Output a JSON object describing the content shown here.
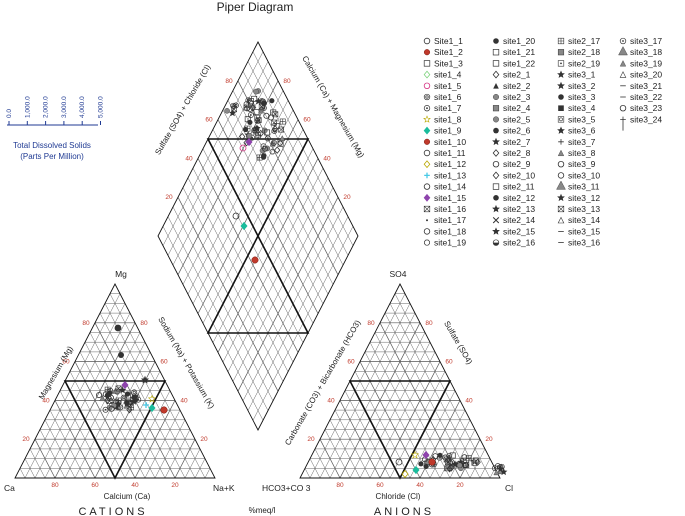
{
  "title": "Piper Diagram",
  "tds_legend": {
    "ticks": [
      "0.0",
      "1,000.0",
      "2,000.0",
      "3,000.0",
      "4,000.0",
      "5,000.0"
    ],
    "title": "Total Dissolved Solids",
    "units": "(Parts Per Million)"
  },
  "cations": {
    "apex_top": "Mg",
    "apex_left": "Ca",
    "apex_right": "Na+K",
    "axis_left": "Magnesium (Mg)",
    "axis_right": "Sodium (Na) + Potassium (K)",
    "axis_bottom": "Calcium (Ca)",
    "caption": "CATIONS"
  },
  "anions": {
    "apex_top": "SO4",
    "apex_left": "HCO3+CO 3",
    "apex_right": "Cl",
    "axis_left": "Carbonate (CO3) + Bicarbonate (HCO3)",
    "axis_right": "Sulfate (SO4)",
    "axis_bottom": "Chloride (Cl)",
    "caption": "ANIONS"
  },
  "diamond": {
    "axis_left": "Sulfate (SO4) + Chloride (Cl)",
    "axis_right": "Calcium (Ca) + Magnesium (Mg)"
  },
  "units_label": "%meq/l",
  "tick_values": [
    "20",
    "40",
    "60",
    "80"
  ],
  "colors": {
    "grid": "#555555",
    "tick": "#c0392b",
    "tds": "#1f3a93",
    "frame": "#111111"
  },
  "legend": {
    "columns": [
      [
        "Site1_1",
        "Site1_2",
        "Site1_3",
        "site1_4",
        "site1_5",
        "site1_6",
        "site1_7",
        "site1_8",
        "site1_9",
        "site1_10",
        "site1_11",
        "site1_12",
        "site1_13",
        "site1_14",
        "site1_15",
        "site1_16",
        "site1_17",
        "site1_18",
        "site1_19"
      ],
      [
        "site1_20",
        "site1_21",
        "site1_22",
        "site2_1",
        "site2_2",
        "site2_3",
        "site2_4",
        "site2_5",
        "site2_6",
        "site2_7",
        "site2_8",
        "site2_9",
        "site2_10",
        "site2_11",
        "site2_12",
        "site2_13",
        "site2_14",
        "site2_15",
        "site2_16"
      ],
      [
        "site2_17",
        "site2_18",
        "site2_19",
        "site3_1",
        "site3_2",
        "site3_3",
        "site3_4",
        "site3_5",
        "site3_6",
        "site3_7",
        "site3_8",
        "site3_9",
        "site3_10",
        "site3_11",
        "site3_12",
        "site3_13",
        "site3_14",
        "site3_15",
        "site3_16"
      ],
      [
        "site3_17",
        "site3_18",
        "site3_19",
        "site3_20",
        "site3_21",
        "site3_22",
        "site3_23",
        "site3_24"
      ]
    ],
    "markers": [
      [
        "circle-open",
        "circle-red",
        "square-open",
        "diamond-green",
        "circle-pink",
        "circle-ring",
        "ring-dot",
        "star-open",
        "diamond-cyan",
        "circle-red",
        "circle-open",
        "diamond-yellow",
        "plus-cyan",
        "circle-open",
        "diamond-purple",
        "square-x",
        "dot",
        "circle-open",
        "octagon-open"
      ],
      [
        "circle-dark",
        "square-open",
        "square-open",
        "diamond-open",
        "triangle-dark",
        "circle-gray",
        "square-gray",
        "circle-gray",
        "circle-dark",
        "star-dark",
        "diamond-open",
        "circle-open",
        "diamond-open",
        "square-open",
        "circle-dark",
        "star-dark",
        "cross-dark",
        "star-dark",
        "circle-half"
      ],
      [
        "square-cross",
        "square-gray",
        "square-dot",
        "star-dark",
        "star-dark",
        "circle-dark",
        "square-dark",
        "square-ring",
        "star-dark",
        "plus",
        "triangle-gray",
        "circle-open",
        "circle-open",
        "triangle-big",
        "star-dark",
        "square-x",
        "triangle-open",
        "dash",
        "dash"
      ],
      [
        "circle-dot",
        "triangle-big",
        "triangle-gray",
        "triangle-open",
        "dash",
        "dash",
        "circle-open",
        "plus-big"
      ]
    ]
  }
}
